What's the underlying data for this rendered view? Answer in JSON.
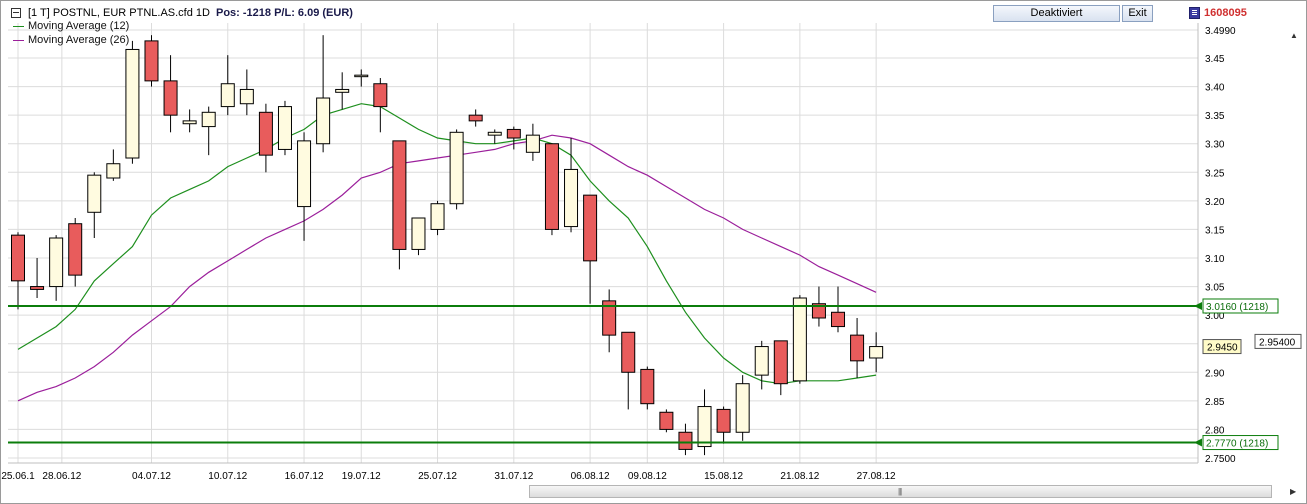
{
  "header": {
    "title": "[1 T] POSTNL, EUR   PTNL.AS.cfd 1D",
    "position": "Pos: -1218  P/L: 6.09  (EUR)",
    "button_deactivate": "Deaktiviert",
    "button_exit": "Exit",
    "account": "1608095",
    "account_color": "#d03030"
  },
  "legend": [
    {
      "label": "Moving Average  (12)",
      "color": "#1e8f1e"
    },
    {
      "label": "Moving Average  (26)",
      "color": "#9b1f9b"
    }
  ],
  "scrollbar_grip": "|||",
  "chart_data": {
    "type": "candlestick",
    "colors": {
      "up": "#fffbe0",
      "down": "#e85c5c",
      "outline": "#000000",
      "ma12": "#1e8f1e",
      "ma26": "#9b1f9b",
      "hline": "#0b7d0b"
    },
    "ylim": [
      2.75,
      3.5
    ],
    "y_ticks": [
      {
        "v": 3.499,
        "label": "3.4990"
      },
      {
        "v": 3.45,
        "label": "3.45"
      },
      {
        "v": 3.4,
        "label": "3.40"
      },
      {
        "v": 3.35,
        "label": "3.35"
      },
      {
        "v": 3.3,
        "label": "3.30"
      },
      {
        "v": 3.25,
        "label": "3.25"
      },
      {
        "v": 3.2,
        "label": "3.20"
      },
      {
        "v": 3.15,
        "label": "3.15"
      },
      {
        "v": 3.1,
        "label": "3.10"
      },
      {
        "v": 3.05,
        "label": "3.05"
      },
      {
        "v": 3.0,
        "label": "3.00"
      },
      {
        "v": 2.95,
        "label": ""
      },
      {
        "v": 2.9,
        "label": "2.90"
      },
      {
        "v": 2.85,
        "label": "2.85"
      },
      {
        "v": 2.8,
        "label": "2.80"
      },
      {
        "v": 2.75,
        "label": "2.7500"
      }
    ],
    "x_labels": [
      {
        "i": 0,
        "label": "25.06.1"
      },
      {
        "i": 2.3,
        "label": "28.06.12"
      },
      {
        "i": 7,
        "label": "04.07.12"
      },
      {
        "i": 11,
        "label": "10.07.12"
      },
      {
        "i": 15,
        "label": "16.07.12"
      },
      {
        "i": 18,
        "label": "19.07.12"
      },
      {
        "i": 22,
        "label": "25.07.12"
      },
      {
        "i": 26,
        "label": "31.07.12"
      },
      {
        "i": 30,
        "label": "06.08.12"
      },
      {
        "i": 33,
        "label": "09.08.12"
      },
      {
        "i": 37,
        "label": "15.08.12"
      },
      {
        "i": 41,
        "label": "21.08.12"
      },
      {
        "i": 45,
        "label": "27.08.12"
      }
    ],
    "candles": [
      {
        "o": 3.14,
        "h": 3.145,
        "l": 3.01,
        "c": 3.06
      },
      {
        "o": 3.05,
        "h": 3.1,
        "l": 3.03,
        "c": 3.045
      },
      {
        "o": 3.05,
        "h": 3.14,
        "l": 3.025,
        "c": 3.135
      },
      {
        "o": 3.16,
        "h": 3.17,
        "l": 3.05,
        "c": 3.07
      },
      {
        "o": 3.18,
        "h": 3.25,
        "l": 3.135,
        "c": 3.245
      },
      {
        "o": 3.24,
        "h": 3.29,
        "l": 3.235,
        "c": 3.265
      },
      {
        "o": 3.275,
        "h": 3.48,
        "l": 3.265,
        "c": 3.465
      },
      {
        "o": 3.48,
        "h": 3.49,
        "l": 3.4,
        "c": 3.41
      },
      {
        "o": 3.41,
        "h": 3.455,
        "l": 3.32,
        "c": 3.35
      },
      {
        "o": 3.335,
        "h": 3.36,
        "l": 3.32,
        "c": 3.34
      },
      {
        "o": 3.33,
        "h": 3.365,
        "l": 3.28,
        "c": 3.355
      },
      {
        "o": 3.365,
        "h": 3.455,
        "l": 3.35,
        "c": 3.405
      },
      {
        "o": 3.37,
        "h": 3.43,
        "l": 3.35,
        "c": 3.395
      },
      {
        "o": 3.355,
        "h": 3.37,
        "l": 3.25,
        "c": 3.28
      },
      {
        "o": 3.29,
        "h": 3.375,
        "l": 3.28,
        "c": 3.365
      },
      {
        "o": 3.19,
        "h": 3.32,
        "l": 3.13,
        "c": 3.305
      },
      {
        "o": 3.3,
        "h": 3.49,
        "l": 3.285,
        "c": 3.38
      },
      {
        "o": 3.39,
        "h": 3.425,
        "l": 3.36,
        "c": 3.395
      },
      {
        "o": 3.42,
        "h": 3.43,
        "l": 3.4,
        "c": 3.42
      },
      {
        "o": 3.405,
        "h": 3.415,
        "l": 3.32,
        "c": 3.365
      },
      {
        "o": 3.305,
        "h": 3.305,
        "l": 3.08,
        "c": 3.115
      },
      {
        "o": 3.115,
        "h": 3.17,
        "l": 3.105,
        "c": 3.17
      },
      {
        "o": 3.15,
        "h": 3.2,
        "l": 3.14,
        "c": 3.195
      },
      {
        "o": 3.195,
        "h": 3.325,
        "l": 3.185,
        "c": 3.32
      },
      {
        "o": 3.35,
        "h": 3.36,
        "l": 3.33,
        "c": 3.34
      },
      {
        "o": 3.315,
        "h": 3.325,
        "l": 3.3,
        "c": 3.32
      },
      {
        "o": 3.325,
        "h": 3.33,
        "l": 3.29,
        "c": 3.31
      },
      {
        "o": 3.285,
        "h": 3.335,
        "l": 3.27,
        "c": 3.315
      },
      {
        "o": 3.3,
        "h": 3.3,
        "l": 3.14,
        "c": 3.15
      },
      {
        "o": 3.155,
        "h": 3.31,
        "l": 3.145,
        "c": 3.255
      },
      {
        "o": 3.21,
        "h": 3.21,
        "l": 3.02,
        "c": 3.095
      },
      {
        "o": 3.025,
        "h": 3.045,
        "l": 2.935,
        "c": 2.965
      },
      {
        "o": 2.97,
        "h": 2.97,
        "l": 2.835,
        "c": 2.9
      },
      {
        "o": 2.905,
        "h": 2.91,
        "l": 2.835,
        "c": 2.845
      },
      {
        "o": 2.83,
        "h": 2.835,
        "l": 2.795,
        "c": 2.8
      },
      {
        "o": 2.795,
        "h": 2.81,
        "l": 2.755,
        "c": 2.765
      },
      {
        "o": 2.77,
        "h": 2.87,
        "l": 2.755,
        "c": 2.84
      },
      {
        "o": 2.835,
        "h": 2.84,
        "l": 2.775,
        "c": 2.795
      },
      {
        "o": 2.795,
        "h": 2.895,
        "l": 2.78,
        "c": 2.88
      },
      {
        "o": 2.895,
        "h": 2.955,
        "l": 2.87,
        "c": 2.945
      },
      {
        "o": 2.955,
        "h": 2.955,
        "l": 2.86,
        "c": 2.88
      },
      {
        "o": 2.885,
        "h": 3.035,
        "l": 2.88,
        "c": 3.03
      },
      {
        "o": 3.02,
        "h": 3.05,
        "l": 2.98,
        "c": 2.995
      },
      {
        "o": 3.005,
        "h": 3.05,
        "l": 2.97,
        "c": 2.98
      },
      {
        "o": 2.965,
        "h": 2.995,
        "l": 2.89,
        "c": 2.92
      },
      {
        "o": 2.925,
        "h": 2.97,
        "l": 2.9,
        "c": 2.945
      }
    ],
    "ma12": [
      [
        0,
        2.94
      ],
      [
        2,
        2.98
      ],
      [
        3,
        3.01
      ],
      [
        4,
        3.06
      ],
      [
        5,
        3.09
      ],
      [
        6,
        3.12
      ],
      [
        7,
        3.175
      ],
      [
        8,
        3.205
      ],
      [
        9,
        3.22
      ],
      [
        10,
        3.235
      ],
      [
        11,
        3.26
      ],
      [
        12,
        3.275
      ],
      [
        13,
        3.29
      ],
      [
        14,
        3.31
      ],
      [
        15,
        3.325
      ],
      [
        16,
        3.35
      ],
      [
        17,
        3.36
      ],
      [
        18,
        3.37
      ],
      [
        19,
        3.365
      ],
      [
        20,
        3.345
      ],
      [
        21,
        3.325
      ],
      [
        22,
        3.31
      ],
      [
        23,
        3.305
      ],
      [
        24,
        3.3
      ],
      [
        25,
        3.3
      ],
      [
        26,
        3.305
      ],
      [
        27,
        3.31
      ],
      [
        28,
        3.3
      ],
      [
        29,
        3.28
      ],
      [
        30,
        3.235
      ],
      [
        31,
        3.2
      ],
      [
        32,
        3.17
      ],
      [
        33,
        3.12
      ],
      [
        34,
        3.06
      ],
      [
        35,
        3.005
      ],
      [
        36,
        2.96
      ],
      [
        37,
        2.925
      ],
      [
        38,
        2.9
      ],
      [
        39,
        2.885
      ],
      [
        40,
        2.88
      ],
      [
        41,
        2.885
      ],
      [
        42,
        2.885
      ],
      [
        43,
        2.885
      ],
      [
        44,
        2.89
      ],
      [
        45,
        2.895
      ]
    ],
    "ma26": [
      [
        0,
        2.85
      ],
      [
        1,
        2.865
      ],
      [
        2,
        2.875
      ],
      [
        3,
        2.89
      ],
      [
        4,
        2.91
      ],
      [
        5,
        2.935
      ],
      [
        6,
        2.965
      ],
      [
        7,
        2.99
      ],
      [
        8,
        3.015
      ],
      [
        9,
        3.05
      ],
      [
        10,
        3.075
      ],
      [
        11,
        3.095
      ],
      [
        12,
        3.115
      ],
      [
        13,
        3.135
      ],
      [
        14,
        3.15
      ],
      [
        15,
        3.165
      ],
      [
        16,
        3.185
      ],
      [
        17,
        3.21
      ],
      [
        18,
        3.24
      ],
      [
        19,
        3.25
      ],
      [
        20,
        3.265
      ],
      [
        21,
        3.27
      ],
      [
        22,
        3.275
      ],
      [
        23,
        3.28
      ],
      [
        24,
        3.285
      ],
      [
        25,
        3.29
      ],
      [
        26,
        3.3
      ],
      [
        27,
        3.305
      ],
      [
        28,
        3.315
      ],
      [
        29,
        3.31
      ],
      [
        30,
        3.3
      ],
      [
        31,
        3.28
      ],
      [
        32,
        3.26
      ],
      [
        33,
        3.245
      ],
      [
        34,
        3.225
      ],
      [
        35,
        3.205
      ],
      [
        36,
        3.185
      ],
      [
        37,
        3.17
      ],
      [
        38,
        3.15
      ],
      [
        39,
        3.135
      ],
      [
        40,
        3.12
      ],
      [
        41,
        3.105
      ],
      [
        42,
        3.085
      ],
      [
        43,
        3.07
      ],
      [
        44,
        3.055
      ],
      [
        45,
        3.04
      ]
    ],
    "hlines": [
      {
        "v": 3.016,
        "label": "3.0160  (1218)"
      },
      {
        "v": 2.777,
        "label": "2.7770  (1218)"
      }
    ],
    "price_tags": [
      {
        "v": 2.945,
        "label": "2.9450",
        "style": "yellow"
      },
      {
        "v": 2.954,
        "label": "2.95400",
        "style": "white"
      }
    ]
  }
}
